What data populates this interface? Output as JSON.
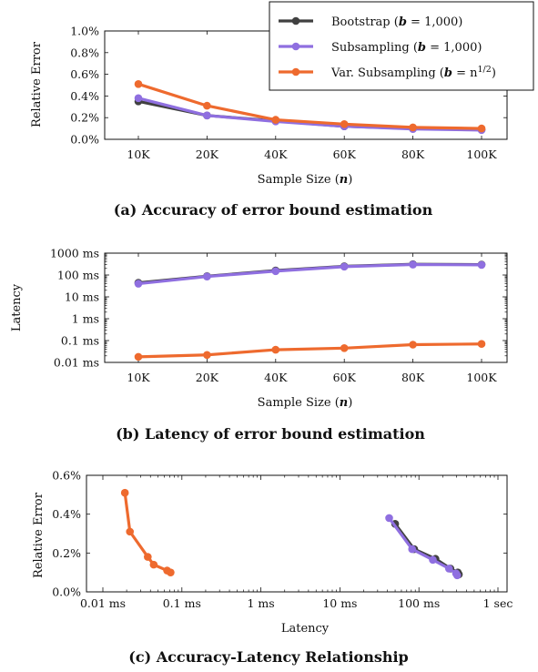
{
  "colors": {
    "bootstrap": "#404040",
    "subsampling": "#8f6fe0",
    "var_subsampling": "#ee6a2e"
  },
  "legend": {
    "items": [
      {
        "key": "bootstrap",
        "label_main": "Bootstrap (",
        "label_var": "b",
        "label_rest": " = 1,000)"
      },
      {
        "key": "subsampling",
        "label_main": "Subsampling (",
        "label_var": "b",
        "label_rest": " = 1,000)"
      },
      {
        "key": "var_subsampling",
        "label_main": "Var. Subsampling (",
        "label_var": "b",
        "label_rest": " = n",
        "label_sup": "1/2",
        "label_end": ")"
      }
    ]
  },
  "chart_data": [
    {
      "id": "a",
      "type": "line",
      "caption": "(a) Accuracy of error bound estimation",
      "xlabel_main": "Sample Size (",
      "xlabel_var": "n",
      "xlabel_end": ")",
      "ylabel": "Relative Error",
      "categories": [
        "10K",
        "20K",
        "40K",
        "60K",
        "80K",
        "100K"
      ],
      "yticks": [
        "0.0%",
        "0.2%",
        "0.4%",
        "0.6%",
        "0.8%",
        "1.0%"
      ],
      "ylim": [
        0,
        1.0
      ],
      "series": [
        {
          "key": "bootstrap",
          "values": [
            0.35,
            0.22,
            0.17,
            0.12,
            0.1,
            0.09
          ]
        },
        {
          "key": "subsampling",
          "values": [
            0.38,
            0.22,
            0.165,
            0.12,
            0.095,
            0.085
          ]
        },
        {
          "key": "var_subsampling",
          "values": [
            0.51,
            0.31,
            0.18,
            0.14,
            0.11,
            0.1
          ]
        }
      ]
    },
    {
      "id": "b",
      "type": "line",
      "scale": "log",
      "caption": "(b) Latency of error bound estimation",
      "xlabel_main": "Sample Size (",
      "xlabel_var": "n",
      "xlabel_end": ")",
      "ylabel": "Latency",
      "categories": [
        "10K",
        "20K",
        "40K",
        "60K",
        "80K",
        "100K"
      ],
      "yticks": [
        "0.01 ms",
        "0.1 ms",
        "1 ms",
        "10 ms",
        "100 ms",
        "1000 ms"
      ],
      "ylim": [
        0.01,
        1000
      ],
      "series": [
        {
          "key": "bootstrap",
          "values": [
            44,
            88,
            160,
            250,
            310,
            300
          ]
        },
        {
          "key": "subsampling",
          "values": [
            40,
            85,
            150,
            240,
            300,
            290
          ]
        },
        {
          "key": "var_subsampling",
          "values": [
            0.018,
            0.022,
            0.038,
            0.045,
            0.065,
            0.07
          ]
        }
      ]
    },
    {
      "id": "c",
      "type": "line",
      "xscale": "log",
      "caption": "(c) Accuracy-Latency Relationship",
      "xlabel": "Latency",
      "ylabel": "Relative Error",
      "xticks": [
        "0.01 ms",
        "0.1 ms",
        "1 ms",
        "10 ms",
        "100 ms",
        "1 sec"
      ],
      "yticks": [
        "0.0%",
        "0.2%",
        "0.4%",
        "0.6%"
      ],
      "xlim": [
        0.01,
        1000
      ],
      "ylim": [
        0,
        0.6
      ],
      "series": [
        {
          "key": "bootstrap",
          "x": [
            50,
            87,
            162,
            250,
            310,
            320
          ],
          "y": [
            0.35,
            0.22,
            0.17,
            0.12,
            0.1,
            0.09
          ]
        },
        {
          "key": "subsampling",
          "x": [
            42,
            82,
            150,
            240,
            295,
            305
          ],
          "y": [
            0.38,
            0.22,
            0.165,
            0.12,
            0.095,
            0.085
          ]
        },
        {
          "key": "var_subsampling",
          "x": [
            0.019,
            0.022,
            0.037,
            0.044,
            0.065,
            0.072
          ],
          "y": [
            0.51,
            0.31,
            0.18,
            0.14,
            0.11,
            0.1
          ]
        }
      ]
    }
  ]
}
